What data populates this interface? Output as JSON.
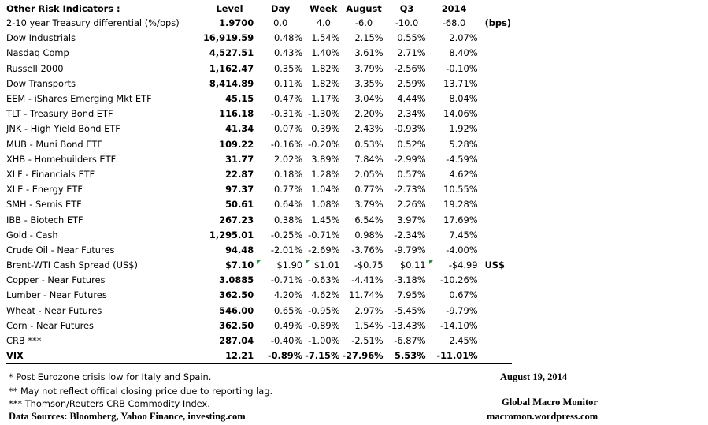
{
  "headers": {
    "name": "Other Risk Indicators :",
    "level": "Level",
    "day": "Day",
    "week": "Week",
    "august": "August",
    "q3": "Q3",
    "y2014": "2014"
  },
  "rows": [
    {
      "name": "2-10 year Treasury differential (%/bps)",
      "level": "1.9700",
      "day": "0.0",
      "week": "4.0",
      "august": "-6.0",
      "q3": "-10.0",
      "y2014": "-68.0",
      "unit": "(bps)"
    },
    {
      "name": "Dow Industrials",
      "level": "16,919.59",
      "day": "0.48%",
      "week": "1.54%",
      "august": "2.15%",
      "q3": "0.55%",
      "y2014": "2.07%",
      "unit": ""
    },
    {
      "name": "Nasdaq Comp",
      "level": "4,527.51",
      "day": "0.43%",
      "week": "1.40%",
      "august": "3.61%",
      "q3": "2.71%",
      "y2014": "8.40%",
      "unit": ""
    },
    {
      "name": "Russell 2000",
      "level": "1,162.47",
      "day": "0.35%",
      "week": "1.82%",
      "august": "3.79%",
      "q3": "-2.56%",
      "y2014": "-0.10%",
      "unit": ""
    },
    {
      "name": "Dow Transports",
      "level": "8,414.89",
      "day": "0.11%",
      "week": "1.82%",
      "august": "3.35%",
      "q3": "2.59%",
      "y2014": "13.71%",
      "unit": ""
    },
    {
      "name": "EEM - iShares Emerging Mkt ETF",
      "level": "45.15",
      "day": "0.47%",
      "week": "1.17%",
      "august": "3.04%",
      "q3": "4.44%",
      "y2014": "8.04%",
      "unit": ""
    },
    {
      "name": "TLT - Treasury Bond ETF",
      "level": "116.18",
      "day": "-0.31%",
      "week": "-1.30%",
      "august": "2.20%",
      "q3": "2.34%",
      "y2014": "14.06%",
      "unit": ""
    },
    {
      "name": "JNK - High Yield Bond ETF",
      "level": "41.34",
      "day": "0.07%",
      "week": "0.39%",
      "august": "2.43%",
      "q3": "-0.93%",
      "y2014": "1.92%",
      "unit": ""
    },
    {
      "name": "MUB - Muni Bond ETF",
      "level": "109.22",
      "day": "-0.16%",
      "week": "-0.20%",
      "august": "0.53%",
      "q3": "0.52%",
      "y2014": "5.28%",
      "unit": ""
    },
    {
      "name": "XHB - Homebuilders ETF",
      "level": "31.77",
      "day": "2.02%",
      "week": "3.89%",
      "august": "7.84%",
      "q3": "-2.99%",
      "y2014": "-4.59%",
      "unit": ""
    },
    {
      "name": "XLF - Financials ETF",
      "level": "22.87",
      "day": "0.18%",
      "week": "1.28%",
      "august": "2.05%",
      "q3": "0.57%",
      "y2014": "4.62%",
      "unit": ""
    },
    {
      "name": "XLE - Energy ETF",
      "level": "97.37",
      "day": "0.77%",
      "week": "1.04%",
      "august": "0.77%",
      "q3": "-2.73%",
      "y2014": "10.55%",
      "unit": ""
    },
    {
      "name": "SMH - Semis ETF",
      "level": "50.61",
      "day": "0.64%",
      "week": "1.08%",
      "august": "3.79%",
      "q3": "2.26%",
      "y2014": "19.28%",
      "unit": ""
    },
    {
      "name": "IBB - Biotech ETF",
      "level": "267.23",
      "day": "0.38%",
      "week": "1.45%",
      "august": "6.54%",
      "q3": "3.97%",
      "y2014": "17.69%",
      "unit": ""
    },
    {
      "name": "Gold - Cash",
      "level": "1,295.01",
      "day": "-0.25%",
      "week": "-0.71%",
      "august": "0.98%",
      "q3": "-2.34%",
      "y2014": "7.45%",
      "unit": ""
    },
    {
      "name": "Crude Oil - Near Futures",
      "level": "94.48",
      "day": "-2.01%",
      "week": "-2.69%",
      "august": "-3.76%",
      "q3": "-9.79%",
      "y2014": "-4.00%",
      "unit": ""
    },
    {
      "name": "Brent-WTI Cash Spread (US$)",
      "level": "$7.10",
      "day": "$1.90",
      "week": "$1.01",
      "august": "-$0.75",
      "q3": "$0.11",
      "y2014": "-$4.99",
      "unit": "US$"
    },
    {
      "name": "Copper - Near Futures",
      "level": "3.0885",
      "day": "-0.71%",
      "week": "-0.63%",
      "august": "-4.41%",
      "q3": "-3.18%",
      "y2014": "-10.26%",
      "unit": ""
    },
    {
      "name": "Lumber - Near Futures",
      "level": "362.50",
      "day": "4.20%",
      "week": "4.62%",
      "august": "11.74%",
      "q3": "7.95%",
      "y2014": "0.67%",
      "unit": ""
    },
    {
      "name": "Wheat - Near Futures",
      "level": "546.00",
      "day": "0.65%",
      "week": "-0.95%",
      "august": "2.97%",
      "q3": "-5.45%",
      "y2014": "-9.79%",
      "unit": ""
    },
    {
      "name": "Corn - Near Futures",
      "level": "362.50",
      "day": "0.49%",
      "week": "-0.89%",
      "august": "1.54%",
      "q3": "-13.43%",
      "y2014": "-14.10%",
      "unit": ""
    },
    {
      "name": "CRB ***",
      "level": "287.04",
      "day": "-0.40%",
      "week": "-1.00%",
      "august": "-2.51%",
      "q3": "-6.87%",
      "y2014": "2.45%",
      "unit": ""
    },
    {
      "name": "VIX",
      "level": "12.21",
      "day": "-0.89%",
      "week": "-7.15%",
      "august": "-27.96%",
      "q3": "5.53%",
      "y2014": "-11.01%",
      "unit": ""
    }
  ],
  "notes": {
    "n1": "*  Post Eurozone crisis low for Italy and Spain.",
    "n2": "**  May not reflect offical closing price due to reporting lag.",
    "n3": "*** Thomson/Reuters CRB Commodity Index.",
    "sources": "Data Sources:  Bloomberg,  Yahoo Finance, investing.com"
  },
  "footer": {
    "date": "August 19, 2014",
    "brand": "Global Macro Monitor",
    "site": "macromon.wordpress.com"
  },
  "colors": {
    "comment_marker": "#2e8b3a",
    "text": "#000000",
    "background": "#ffffff"
  }
}
